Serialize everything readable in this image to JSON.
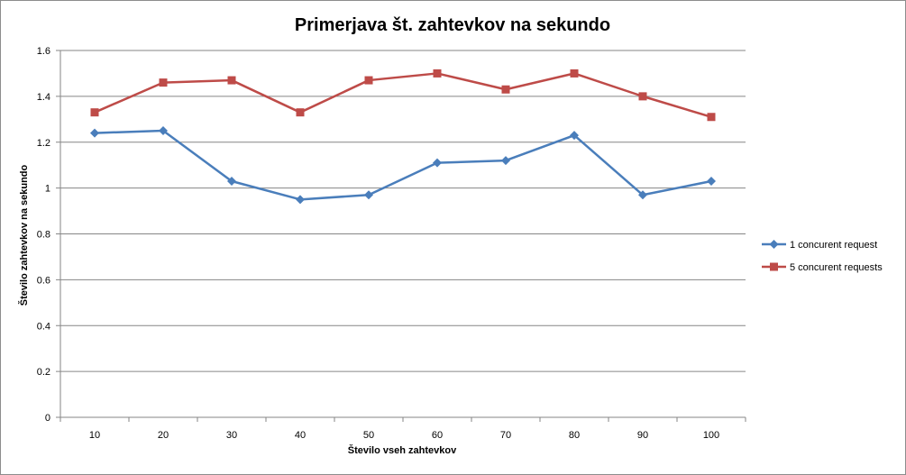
{
  "chart_data": {
    "type": "line",
    "title": "Primerjava št. zahtevkov na sekundo",
    "xlabel": "Število vseh zahtevkov",
    "ylabel": "Število zahtevkov na sekundo",
    "categories": [
      "10",
      "20",
      "30",
      "40",
      "50",
      "60",
      "70",
      "80",
      "90",
      "100"
    ],
    "ylim": [
      0,
      1.6
    ],
    "yticks": [
      "0",
      "0.2",
      "0.4",
      "0.6",
      "0.8",
      "1",
      "1.2",
      "1.4",
      "1.6"
    ],
    "grid": true,
    "legend_position": "right",
    "series": [
      {
        "name": "1 concurent request",
        "color": "#4a7ebb",
        "marker": "diamond",
        "values": [
          1.24,
          1.25,
          1.03,
          0.95,
          0.97,
          1.11,
          1.12,
          1.23,
          0.97,
          1.03
        ]
      },
      {
        "name": "5 concurent requests",
        "color": "#be4b48",
        "marker": "square",
        "values": [
          1.33,
          1.46,
          1.47,
          1.33,
          1.47,
          1.5,
          1.43,
          1.5,
          1.4,
          1.31
        ]
      }
    ]
  }
}
